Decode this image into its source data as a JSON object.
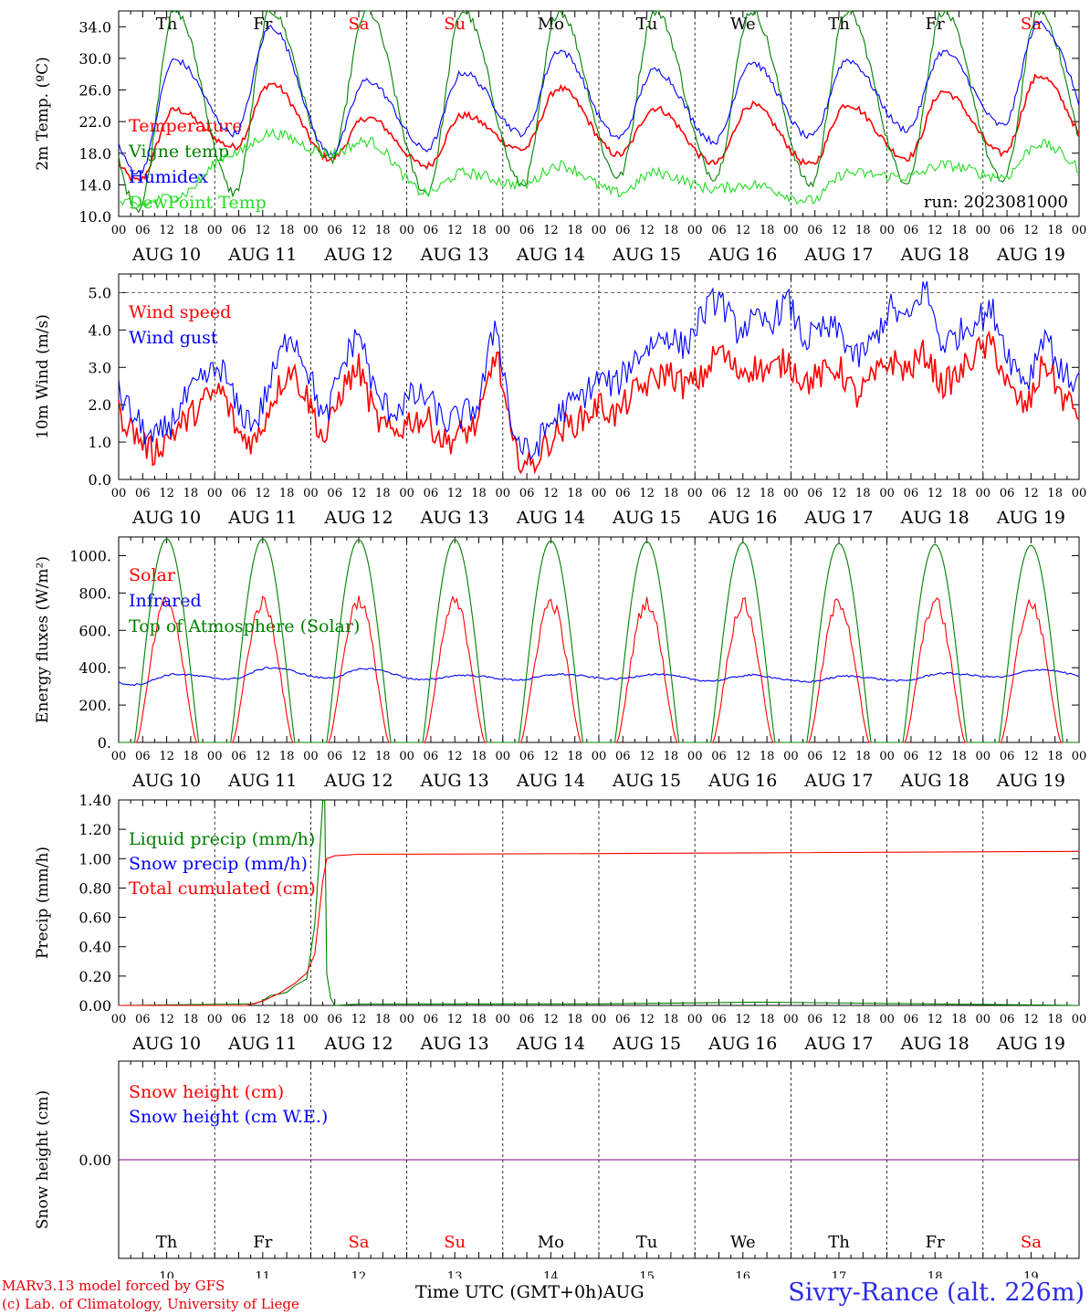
{
  "chart_data": {
    "type": "line",
    "run_label": "run: 2023081000",
    "x_hours": [
      0,
      6,
      12,
      18
    ],
    "x_tick_labels": [
      "00",
      "06",
      "12",
      "18"
    ],
    "dates": [
      "AUG 10",
      "AUG 11",
      "AUG 12",
      "AUG 13",
      "AUG 14",
      "AUG 15",
      "AUG 16",
      "AUG 17",
      "AUG 18",
      "AUG 19"
    ],
    "weekdays": [
      {
        "label": "Th",
        "weekend": false
      },
      {
        "label": "Fr",
        "weekend": false
      },
      {
        "label": "Sa",
        "weekend": true
      },
      {
        "label": "Su",
        "weekend": true
      },
      {
        "label": "Mo",
        "weekend": false
      },
      {
        "label": "Tu",
        "weekend": false
      },
      {
        "label": "We",
        "weekend": false
      },
      {
        "label": "Th",
        "weekend": false
      },
      {
        "label": "Fr",
        "weekend": false
      },
      {
        "label": "Sa",
        "weekend": true
      }
    ],
    "day_numbers": [
      "10",
      "11",
      "12",
      "13",
      "14",
      "15",
      "16",
      "17",
      "18",
      "19"
    ],
    "colors": {
      "red": "#ff0000",
      "green": "#008000",
      "blue": "#0000ff",
      "lightgreen": "#22dd22",
      "purple": "#800080"
    },
    "panels": [
      {
        "ylabel": "2m Temp. (ºC)",
        "ylim": [
          10,
          36
        ],
        "yticks": [
          "10.0",
          "14.0",
          "18.0",
          "22.0",
          "26.0",
          "30.0",
          "34.0"
        ],
        "ytick_values": [
          10,
          14,
          18,
          22,
          26,
          30,
          34
        ],
        "show_weekdays": true,
        "series": [
          {
            "name": "Temperature",
            "color": "red",
            "daily_min": [
              14.5,
              18.8,
              17.3,
              16.4,
              18.5,
              17.8,
              16.7,
              16.5,
              17.4,
              18.0
            ],
            "daily_max": [
              23.5,
              26.8,
              22.5,
              22.8,
              26.2,
              23.7,
              24.1,
              24.2,
              25.8,
              27.8
            ],
            "tmin_hour": 5,
            "tmax_hour": 14
          },
          {
            "name": "Vigne temp",
            "color": "green",
            "daily_min": [
              11.0,
              13.0,
              17.0,
              13.0,
              14.0,
              15.0,
              15.0,
              14.0,
              14.5,
              14.5
            ],
            "daily_max": [
              36.0,
              36.0,
              36.0,
              36.0,
              36.0,
              36.0,
              36.0,
              36.0,
              36.0,
              36.0
            ],
            "tmin_hour": 5,
            "tmax_hour": 14
          },
          {
            "name": "Humidex",
            "color": "blue",
            "daily_min": [
              15.5,
              20.5,
              18.0,
              18.5,
              20.5,
              20.0,
              19.5,
              20.0,
              21.0,
              21.5
            ],
            "daily_max": [
              29.8,
              34.0,
              27.2,
              28.2,
              31.0,
              28.5,
              29.5,
              29.8,
              30.8,
              34.5
            ],
            "tmin_hour": 5,
            "tmax_hour": 14
          },
          {
            "name": "DewPoint Temp",
            "color": "lightgreen",
            "daily_min": [
              11.5,
              18.0,
              18.0,
              13.0,
              14.0,
              13.0,
              13.5,
              12.0,
              15.0,
              15.0
            ],
            "daily_max": [
              12.5,
              20.5,
              19.5,
              15.5,
              16.5,
              15.5,
              14.0,
              15.5,
              16.5,
              19.2
            ],
            "tmin_hour": 5,
            "tmax_hour": 14
          }
        ]
      },
      {
        "ylabel": "10m Wind (m/s)",
        "ylim": [
          0,
          5.5
        ],
        "yticks": [
          "0.0",
          "1.0",
          "2.0",
          "3.0",
          "4.0",
          "5.0"
        ],
        "ytick_values": [
          0,
          1,
          2,
          3,
          4,
          5
        ],
        "refline": 5.0,
        "show_weekdays": false,
        "series": [
          {
            "name": "Wind speed",
            "color": "red",
            "hourly_base": [
              1.8,
              1.2,
              0.7,
              1.2,
              1.6,
              2.1,
              2.4,
              1.2,
              1.0,
              2.2,
              3.0,
              2.2,
              1.0,
              2.4,
              3.0,
              1.6,
              1.2,
              1.6,
              1.6,
              1.0,
              1.2,
              1.5,
              3.5,
              0.8,
              0.3,
              1.0,
              1.4,
              1.6,
              2.0,
              1.7,
              2.3,
              2.6,
              2.9,
              2.5,
              2.7,
              3.5,
              2.9,
              3.0,
              2.9,
              3.2,
              2.6,
              2.8,
              3.0,
              2.2,
              2.7,
              3.2,
              2.9,
              3.4,
              2.5,
              2.8,
              3.4,
              3.6,
              2.3,
              1.9,
              3.2,
              2.2,
              1.8
            ]
          },
          {
            "name": "Wind gust",
            "color": "blue",
            "hourly_base": [
              2.3,
              1.6,
              1.0,
              1.5,
              2.2,
              2.7,
              3.0,
              1.8,
              1.5,
              2.8,
              4.0,
              3.0,
              1.5,
              3.0,
              4.0,
              2.2,
              1.8,
              2.2,
              2.2,
              1.5,
              1.7,
              2.0,
              4.3,
              1.2,
              0.6,
              1.4,
              1.9,
              2.2,
              2.7,
              2.5,
              3.2,
              3.6,
              3.9,
              3.5,
              4.4,
              4.9,
              4.0,
              4.2,
              4.2,
              4.8,
              3.7,
              4.0,
              4.0,
              3.2,
              3.7,
              4.6,
              4.2,
              5.2,
              3.6,
              3.9,
              4.3,
              4.5,
              3.2,
              2.6,
              4.0,
              2.8,
              2.6
            ]
          }
        ]
      },
      {
        "ylabel": "Energy fluxes (W/m²)",
        "ylim": [
          0,
          1100
        ],
        "yticks": [
          "0.",
          "200.",
          "400.",
          "600.",
          "800.",
          "1000."
        ],
        "ytick_values": [
          0,
          200,
          400,
          600,
          800,
          1000
        ],
        "show_weekdays": false,
        "series": [
          {
            "name": "Solar",
            "color": "red",
            "daily_peak": [
              790,
              790,
              800,
              790,
              790,
              790,
              780,
              790,
              790,
              780
            ],
            "rise_hour": 4.5,
            "set_hour": 19.5
          },
          {
            "name": "Infrared",
            "color": "blue",
            "daily_min": [
              310,
              340,
              345,
              335,
              335,
              340,
              330,
              325,
              330,
              350
            ],
            "daily_max": [
              365,
              400,
              395,
              360,
              365,
              365,
              360,
              355,
              370,
              390
            ]
          },
          {
            "name": "Top of Atmosphere (Solar)",
            "color": "green",
            "daily_peak": [
              1090,
              1090,
              1085,
              1085,
              1080,
              1075,
              1070,
              1065,
              1060,
              1055
            ],
            "rise_hour": 4.0,
            "set_hour": 20.0
          }
        ]
      },
      {
        "ylabel": "Precip (mm/h)",
        "ylim": [
          0,
          1.4
        ],
        "yticks": [
          "0.00",
          "0.20",
          "0.40",
          "0.60",
          "0.80",
          "1.00",
          "1.20",
          "1.40"
        ],
        "ytick_values": [
          0,
          0.2,
          0.4,
          0.6,
          0.8,
          1.0,
          1.2,
          1.4
        ],
        "show_weekdays": false,
        "series": [
          {
            "name": "Liquid precip (mm/h)",
            "color": "green",
            "events": [
              [
                34,
                0.01
              ],
              [
                36,
                0.03
              ],
              [
                38,
                0.06
              ],
              [
                40,
                0.08
              ],
              [
                42,
                0.1
              ],
              [
                44,
                0.12
              ],
              [
                46,
                0.15
              ],
              [
                47,
                0.2
              ],
              [
                48,
                0.35
              ],
              [
                49,
                0.6
              ],
              [
                50,
                0.9
              ],
              [
                51,
                1.3
              ],
              [
                51.5,
                1.4
              ],
              [
                52,
                0.2
              ],
              [
                53,
                0.05
              ],
              [
                54,
                0.0
              ],
              [
                60,
                0.01
              ],
              [
                120,
                0.01
              ],
              [
                160,
                0.02
              ]
            ]
          },
          {
            "name": "Snow precip (mm/h)",
            "color": "blue",
            "events": []
          },
          {
            "name": "Total cumulated (cm)",
            "color": "red",
            "steps": [
              [
                0,
                0
              ],
              [
                32,
                0
              ],
              [
                36,
                0.03
              ],
              [
                40,
                0.08
              ],
              [
                44,
                0.15
              ],
              [
                47,
                0.22
              ],
              [
                49,
                0.35
              ],
              [
                50,
                0.6
              ],
              [
                51,
                0.85
              ],
              [
                52,
                1.0
              ],
              [
                54,
                1.02
              ],
              [
                60,
                1.03
              ],
              [
                120,
                1.035
              ],
              [
                160,
                1.04
              ],
              [
                240,
                1.05
              ]
            ]
          }
        ]
      },
      {
        "ylabel": "Snow height (cm)",
        "ylim": [
          -1,
          1
        ],
        "yticks": [
          "0.00"
        ],
        "ytick_values": [
          0
        ],
        "show_weekdays": false,
        "series": [
          {
            "name": "Snow height (cm)",
            "color": "red",
            "value": 0
          },
          {
            "name": "Snow height (cm W.E.)",
            "color": "blue",
            "value": 0
          }
        ]
      }
    ],
    "xlabel": "Time UTC (GMT+0h)",
    "month_label": "AUG"
  },
  "footer": {
    "model_line1": "MARv3.13 model forced by GFS",
    "model_line2": "(c) Lab. of Climatology, University of Liege",
    "xlabel": "Time UTC (GMT+0h)",
    "month": "AUG",
    "site": "Sivry-Rance (alt. 226m)"
  }
}
